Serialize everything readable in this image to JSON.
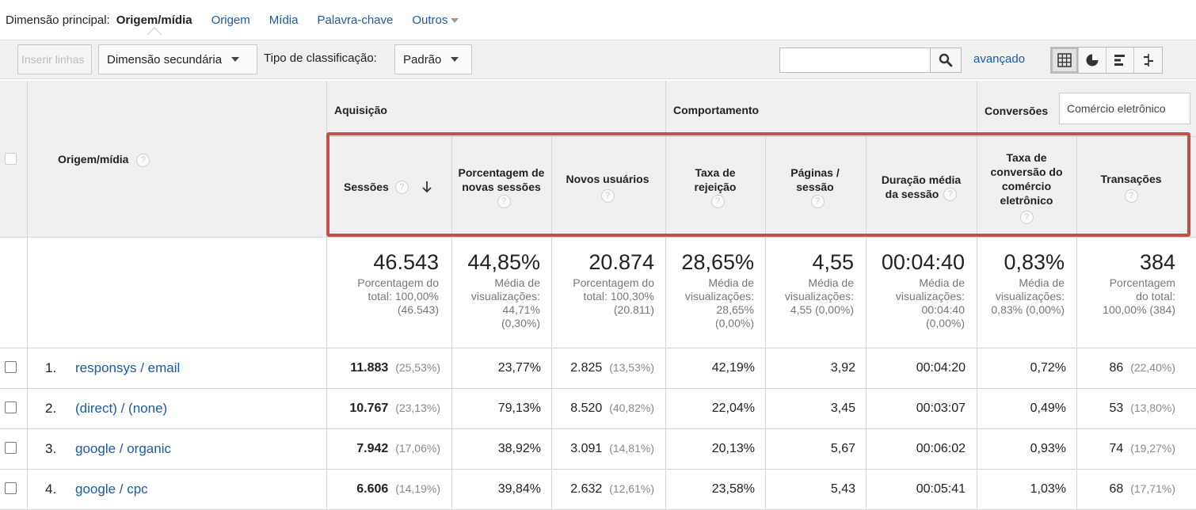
{
  "dimension_bar": {
    "label": "Dimensão principal:",
    "active": "Origem/mídia",
    "links": [
      "Origem",
      "Mídia",
      "Palavra-chave"
    ],
    "more": "Outros"
  },
  "toolbar": {
    "insert_rows": "Inserir linhas",
    "secondary_dimension": "Dimensão secundária",
    "sort_type_label": "Tipo de classificação:",
    "sort_type_value": "Padrão",
    "search_value": "",
    "advanced": "avançado"
  },
  "table": {
    "dimension_header": "Origem/mídia",
    "groups": {
      "acquisition": "Aquisição",
      "behavior": "Comportamento",
      "conversions": "Conversões",
      "conversion_select": "Comércio eletrônico"
    },
    "columns": {
      "sessions": "Sessões",
      "new_sessions_pct": "Porcentagem de novas sessões",
      "new_users": "Novos usuários",
      "bounce_rate": "Taxa de rejeição",
      "pages_per_session": "Páginas / sessão",
      "avg_duration": "Duração média da sessão",
      "ecom_conv_rate": "Taxa de conversão do comércio eletrônico",
      "transactions": "Transações"
    },
    "totals": {
      "sessions": {
        "value": "46.543",
        "lines": [
          "Porcentagem do",
          "total: 100,00%",
          "(46.543)"
        ]
      },
      "new_sessions_pct": {
        "value": "44,85%",
        "lines": [
          "Média de",
          "visualizações:",
          "44,71%",
          "(0,30%)"
        ]
      },
      "new_users": {
        "value": "20.874",
        "lines": [
          "Porcentagem do",
          "total: 100,30%",
          "(20.811)"
        ]
      },
      "bounce_rate": {
        "value": "28,65%",
        "lines": [
          "Média de",
          "visualizações:",
          "28,65%",
          "(0,00%)"
        ]
      },
      "pages_per_session": {
        "value": "4,55",
        "lines": [
          "Média de",
          "visualizações:",
          "4,55 (0,00%)"
        ]
      },
      "avg_duration": {
        "value": "00:04:40",
        "lines": [
          "Média de",
          "visualizações:",
          "00:04:40",
          "(0,00%)"
        ]
      },
      "ecom_conv_rate": {
        "value": "0,83%",
        "lines": [
          "Média de",
          "visualizações:",
          "0,83% (0,00%)"
        ]
      },
      "transactions": {
        "value": "384",
        "lines": [
          "Porcentagem",
          "do total:",
          "100,00% (384)"
        ]
      }
    },
    "rows": [
      {
        "num": "1.",
        "name": "responsys / email",
        "sessions": "11.883",
        "sessions_pct": "(25,53%)",
        "new_sessions_pct": "23,77%",
        "new_users": "2.825",
        "new_users_pct": "(13,53%)",
        "bounce_rate": "42,19%",
        "pages": "3,92",
        "duration": "00:04:20",
        "conv_rate": "0,72%",
        "transactions": "86",
        "transactions_pct": "(22,40%)"
      },
      {
        "num": "2.",
        "name": "(direct) / (none)",
        "sessions": "10.767",
        "sessions_pct": "(23,13%)",
        "new_sessions_pct": "79,13%",
        "new_users": "8.520",
        "new_users_pct": "(40,82%)",
        "bounce_rate": "22,04%",
        "pages": "3,45",
        "duration": "00:03:07",
        "conv_rate": "0,49%",
        "transactions": "53",
        "transactions_pct": "(13,80%)"
      },
      {
        "num": "3.",
        "name": "google / organic",
        "sessions": "7.942",
        "sessions_pct": "(17,06%)",
        "new_sessions_pct": "38,92%",
        "new_users": "3.091",
        "new_users_pct": "(14,81%)",
        "bounce_rate": "20,13%",
        "pages": "5,67",
        "duration": "00:06:02",
        "conv_rate": "0,93%",
        "transactions": "74",
        "transactions_pct": "(19,27%)"
      },
      {
        "num": "4.",
        "name": "google / cpc",
        "sessions": "6.606",
        "sessions_pct": "(14,19%)",
        "new_sessions_pct": "39,84%",
        "new_users": "2.632",
        "new_users_pct": "(12,61%)",
        "bounce_rate": "23,58%",
        "pages": "5,43",
        "duration": "00:05:41",
        "conv_rate": "1,03%",
        "transactions": "68",
        "transactions_pct": "(17,71%)"
      }
    ]
  }
}
